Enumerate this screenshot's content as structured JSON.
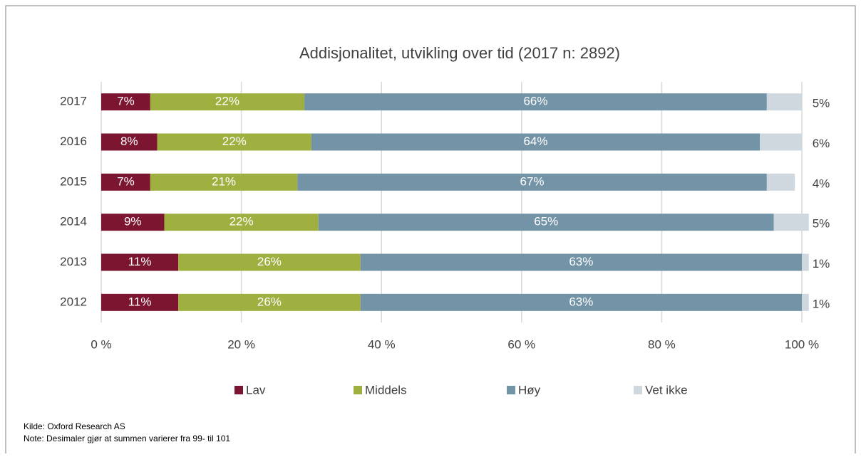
{
  "chart_data": {
    "type": "stacked_bar_horizontal",
    "title": "Addisjonalitet, utvikling over tid (2017 n: 2892)",
    "categories": [
      "2017",
      "2016",
      "2015",
      "2014",
      "2013",
      "2012"
    ],
    "series": [
      {
        "name": "Lav",
        "color": "#7b1530",
        "values": [
          7,
          8,
          7,
          9,
          11,
          11
        ],
        "value_labels": [
          "7%",
          "8%",
          "7%",
          "9%",
          "11%",
          "11%"
        ]
      },
      {
        "name": "Middels",
        "color": "#9fb041",
        "values": [
          22,
          22,
          21,
          22,
          26,
          26
        ],
        "value_labels": [
          "22%",
          "22%",
          "21%",
          "22%",
          "26%",
          "26%"
        ]
      },
      {
        "name": "Høy",
        "color": "#7393a7",
        "values": [
          66,
          64,
          67,
          65,
          63,
          63
        ],
        "value_labels": [
          "66%",
          "64%",
          "67%",
          "65%",
          "63%",
          "63%"
        ]
      },
      {
        "name": "Vet ikke",
        "color": "#cfd8df",
        "values": [
          5,
          6,
          4,
          5,
          1,
          1
        ],
        "value_labels": [
          "5%",
          "6%",
          "4%",
          "5%",
          "1%",
          "1%"
        ]
      }
    ],
    "xlim": [
      0,
      100
    ],
    "xticks": [
      {
        "value": 0,
        "label": "0 %"
      },
      {
        "value": 20,
        "label": "20 %"
      },
      {
        "value": 40,
        "label": "40 %"
      },
      {
        "value": 60,
        "label": "60 %"
      },
      {
        "value": 80,
        "label": "80 %"
      },
      {
        "value": 100,
        "label": "100 %"
      }
    ],
    "grid": true,
    "legend": "bottom",
    "source": "Kilde: Oxford Research AS",
    "note": "Note: Desimaler gjør at summen varierer fra 99- til 101"
  }
}
